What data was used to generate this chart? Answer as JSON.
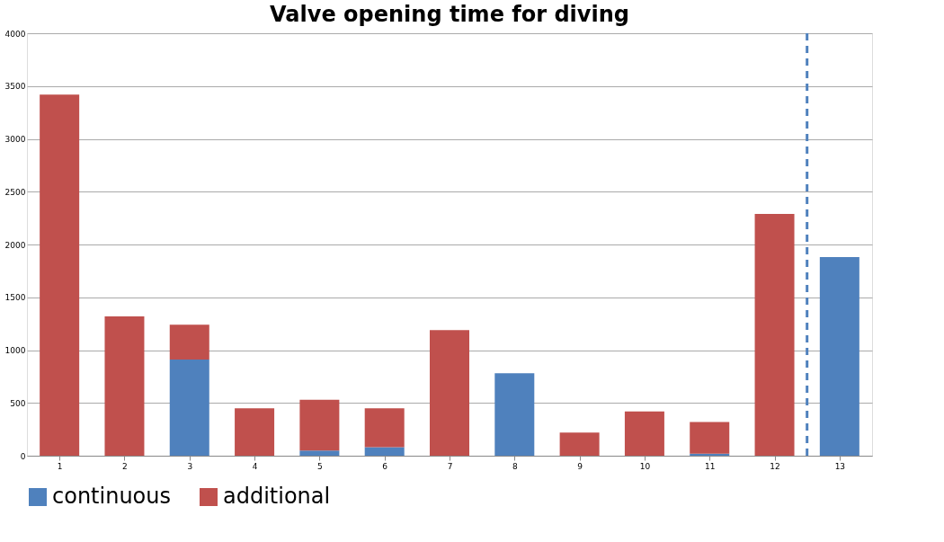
{
  "chart_data": {
    "type": "bar",
    "title": "Valve opening time for diving",
    "x": [
      1,
      2,
      3,
      4,
      5,
      6,
      7,
      8,
      9,
      10,
      11,
      12,
      13
    ],
    "xlim": [
      0.5,
      13.5
    ],
    "xticks": [
      1,
      2,
      3,
      4,
      5,
      6,
      7,
      8,
      9,
      10,
      11,
      12,
      13
    ],
    "stacked": true,
    "series": [
      {
        "name": "continuous",
        "color": "#4f81bd",
        "values": [
          0,
          0,
          910,
          0,
          50,
          80,
          0,
          780,
          0,
          0,
          20,
          0,
          1880
        ]
      },
      {
        "name": "additional",
        "color": "#c0504d",
        "values": [
          3420,
          1320,
          330,
          450,
          480,
          370,
          1190,
          0,
          220,
          420,
          300,
          2290,
          0
        ]
      }
    ],
    "ylim": [
      0,
      4000
    ],
    "yticks": [
      0,
      500,
      1000,
      1500,
      2000,
      2500,
      3000,
      3500,
      4000
    ],
    "grid": "y",
    "legend": "bottom",
    "ref_lines": [
      {
        "axis": "x",
        "value": 12.5,
        "color": "#4f81bd",
        "line_style": "dashed"
      }
    ]
  }
}
